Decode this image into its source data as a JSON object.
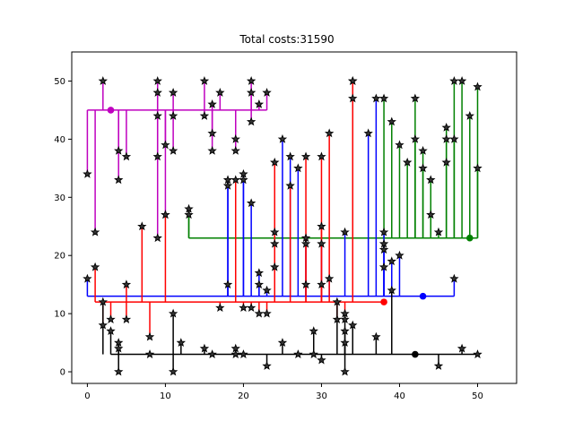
{
  "chart_data": {
    "type": "scatter",
    "title": "Total costs:31590",
    "xlabel": "",
    "ylabel": "",
    "xlim": [
      -2,
      55
    ],
    "ylim": [
      -2,
      55
    ],
    "xticks": [
      0,
      10,
      20,
      30,
      40,
      50
    ],
    "yticks": [
      0,
      10,
      20,
      30,
      40,
      50
    ],
    "grid": false,
    "marker": "star",
    "marker_color": "#333333",
    "point_color": "#000000",
    "series": [
      {
        "color": "#bf00bf",
        "hub": [
          3,
          45
        ],
        "bus": {
          "y": 45,
          "x": [
            0,
            23
          ]
        },
        "points": [
          [
            0,
            34
          ],
          [
            1,
            24
          ],
          [
            2,
            50
          ],
          [
            4,
            33
          ],
          [
            4,
            38
          ],
          [
            5,
            37
          ],
          [
            9,
            50
          ],
          [
            9,
            48
          ],
          [
            9,
            44
          ],
          [
            9,
            37
          ],
          [
            9,
            23
          ],
          [
            10,
            39
          ],
          [
            10,
            27
          ],
          [
            11,
            38
          ],
          [
            11,
            44
          ],
          [
            11,
            48
          ],
          [
            15,
            50
          ],
          [
            15,
            44
          ],
          [
            16,
            46
          ],
          [
            16,
            41
          ],
          [
            16,
            38
          ],
          [
            17,
            48
          ],
          [
            19,
            40
          ],
          [
            19,
            38
          ],
          [
            21,
            50
          ],
          [
            21,
            48
          ],
          [
            21,
            43
          ],
          [
            22,
            46
          ],
          [
            23,
            48
          ]
        ]
      },
      {
        "color": "#008000",
        "hub": [
          49,
          23
        ],
        "bus": {
          "y": 23,
          "x": [
            13,
            50
          ]
        },
        "points": [
          [
            13,
            28
          ],
          [
            13,
            27
          ],
          [
            34,
            50
          ],
          [
            34,
            47
          ],
          [
            38,
            47
          ],
          [
            39,
            43
          ],
          [
            40,
            39
          ],
          [
            41,
            36
          ],
          [
            42,
            47
          ],
          [
            42,
            40
          ],
          [
            43,
            38
          ],
          [
            43,
            35
          ],
          [
            44,
            33
          ],
          [
            44,
            27
          ],
          [
            45,
            24
          ],
          [
            46,
            42
          ],
          [
            46,
            40
          ],
          [
            46,
            36
          ],
          [
            47,
            50
          ],
          [
            47,
            40
          ],
          [
            48,
            50
          ],
          [
            49,
            44
          ],
          [
            50,
            49
          ],
          [
            50,
            35
          ]
        ]
      },
      {
        "color": "#0000ff",
        "hub": [
          43,
          13
        ],
        "bus": {
          "y": 13,
          "x": [
            0,
            47
          ]
        },
        "points": [
          [
            0,
            16
          ],
          [
            18,
            32
          ],
          [
            18,
            33
          ],
          [
            18,
            15
          ],
          [
            20,
            34
          ],
          [
            20,
            33
          ],
          [
            21,
            29
          ],
          [
            22,
            17
          ],
          [
            22,
            15
          ],
          [
            23,
            14
          ],
          [
            25,
            40
          ],
          [
            26,
            37
          ],
          [
            27,
            35
          ],
          [
            28,
            22
          ],
          [
            28,
            15
          ],
          [
            30,
            22
          ],
          [
            31,
            16
          ],
          [
            33,
            24
          ],
          [
            36,
            41
          ],
          [
            37,
            47
          ],
          [
            38,
            24
          ],
          [
            38,
            22
          ],
          [
            38,
            21
          ],
          [
            38,
            18
          ],
          [
            39,
            19
          ],
          [
            40,
            20
          ],
          [
            47,
            16
          ]
        ]
      },
      {
        "color": "#ff0000",
        "hub": [
          38,
          12
        ],
        "bus": {
          "y": 12,
          "x": [
            1,
            38
          ]
        },
        "points": [
          [
            1,
            18
          ],
          [
            2,
            8
          ],
          [
            3,
            9
          ],
          [
            5,
            15
          ],
          [
            5,
            9
          ],
          [
            7,
            25
          ],
          [
            8,
            6
          ],
          [
            10,
            27
          ],
          [
            17,
            11
          ],
          [
            19,
            33
          ],
          [
            20,
            11
          ],
          [
            21,
            11
          ],
          [
            22,
            10
          ],
          [
            23,
            10
          ],
          [
            24,
            36
          ],
          [
            24,
            24
          ],
          [
            24,
            22
          ],
          [
            24,
            18
          ],
          [
            26,
            32
          ],
          [
            28,
            37
          ],
          [
            28,
            23
          ],
          [
            30,
            37
          ],
          [
            30,
            25
          ],
          [
            30,
            15
          ],
          [
            31,
            41
          ],
          [
            32,
            9
          ],
          [
            33,
            10
          ],
          [
            34,
            50
          ]
        ]
      },
      {
        "color": "#000000",
        "hub": [
          42,
          3
        ],
        "bus": {
          "y": 3,
          "x": [
            3,
            50
          ]
        },
        "points": [
          [
            2,
            12
          ],
          [
            3,
            7
          ],
          [
            4,
            5
          ],
          [
            4,
            4
          ],
          [
            4,
            0
          ],
          [
            8,
            3
          ],
          [
            11,
            10
          ],
          [
            11,
            0
          ],
          [
            12,
            5
          ],
          [
            15,
            4
          ],
          [
            16,
            3
          ],
          [
            19,
            4
          ],
          [
            19,
            3
          ],
          [
            20,
            3
          ],
          [
            23,
            1
          ],
          [
            25,
            5
          ],
          [
            27,
            3
          ],
          [
            29,
            3
          ],
          [
            29,
            7
          ],
          [
            30,
            2
          ],
          [
            32,
            12
          ],
          [
            33,
            9
          ],
          [
            33,
            7
          ],
          [
            33,
            5
          ],
          [
            33,
            0
          ],
          [
            34,
            8
          ],
          [
            37,
            6
          ],
          [
            39,
            14
          ],
          [
            45,
            1
          ],
          [
            48,
            4
          ],
          [
            50,
            3
          ]
        ]
      }
    ]
  }
}
